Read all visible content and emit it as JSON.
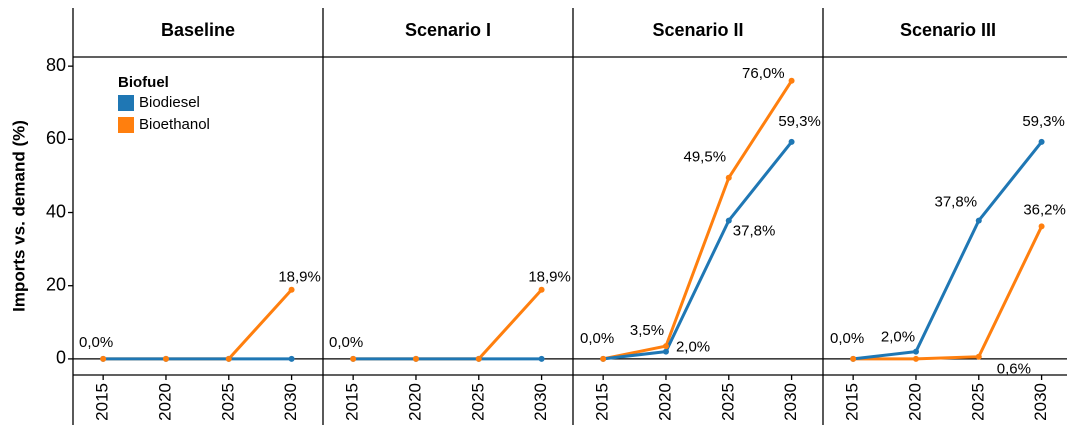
{
  "chart_data": {
    "type": "line",
    "ylabel": "Imports vs. demand (%)",
    "legend": {
      "title": "Biofuel",
      "corner": "top-left"
    },
    "x": [
      2015,
      2020,
      2025,
      2030
    ],
    "xlim": [
      2012.6,
      2032.5
    ],
    "xticks": [
      2015,
      2020,
      2025,
      2030
    ],
    "ylim": [
      -4.4,
      82.5
    ],
    "yticks": [
      0,
      20,
      40,
      60,
      80
    ],
    "hline": 0,
    "series": [
      {
        "name": "Biodiesel",
        "color": "#1f77b4"
      },
      {
        "name": "Bioethanol",
        "color": "#ff7f0e"
      }
    ],
    "facets": [
      {
        "title": "Baseline",
        "values": [
          [
            0,
            0,
            0,
            0
          ],
          [
            0,
            0,
            0,
            18.9
          ]
        ],
        "value_labels": [
          [
            null,
            null,
            null,
            null
          ],
          [
            "0,0%",
            null,
            null,
            "18,9%"
          ]
        ]
      },
      {
        "title": "Scenario I",
        "values": [
          [
            0,
            0,
            0,
            0
          ],
          [
            0,
            0,
            0,
            18.9
          ]
        ],
        "value_labels": [
          [
            null,
            null,
            null,
            null
          ],
          [
            "0,0%",
            null,
            null,
            "18,9%"
          ]
        ]
      },
      {
        "title": "Scenario II",
        "values": [
          [
            0,
            2.0,
            37.8,
            59.3
          ],
          [
            0,
            3.5,
            49.5,
            76.0
          ]
        ],
        "value_labels": [
          [
            null,
            "2,0%",
            "37,8%",
            "59,3%"
          ],
          [
            "0,0%",
            "3,5%",
            "49,5%",
            "76,0%"
          ]
        ]
      },
      {
        "title": "Scenario III",
        "values": [
          [
            0,
            2.0,
            37.8,
            59.3
          ],
          [
            0,
            0,
            0.6,
            36.2
          ]
        ],
        "value_labels": [
          [
            null,
            "2,0%",
            "37,8%",
            "59,3%"
          ],
          [
            "0,0%",
            null,
            "0,6%",
            "36,2%"
          ]
        ]
      }
    ]
  }
}
